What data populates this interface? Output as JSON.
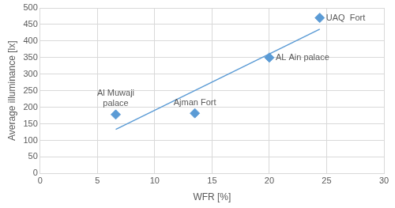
{
  "chart_data": {
    "type": "scatter",
    "x_label": "WFR [%]",
    "y_label": "Average illuminance [lx]",
    "x": [
      6.6,
      13.5,
      20,
      24.4
    ],
    "values": [
      178,
      182,
      350,
      470
    ],
    "point_labels": [
      "Al Muwaji palace",
      "Ajman Fort",
      "AL Ain palace",
      "UAQ  Fort"
    ],
    "color": "#5b9bd5",
    "marker": "diamond",
    "trend_line": {
      "x": [
        6.6,
        24.4
      ],
      "values": [
        133,
        436
      ]
    },
    "xlim": [
      0,
      30
    ],
    "xticks": [
      0,
      5,
      10,
      15,
      20,
      25,
      30
    ],
    "ylim": [
      0,
      500
    ],
    "yticks": [
      0,
      50,
      100,
      150,
      200,
      250,
      300,
      350,
      400,
      450,
      500
    ],
    "grid": true
  }
}
